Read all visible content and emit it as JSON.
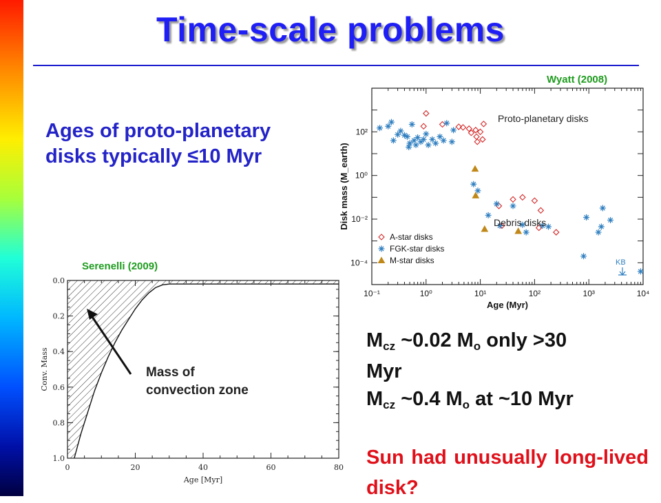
{
  "slide": {
    "title": "Time-scale problems",
    "intro_line1": "Ages of proto-planetary",
    "intro_line2": "disks typically ≤10 Myr",
    "cite_right": "Wyatt (2008)",
    "cite_left": "Serenelli (2009)",
    "stmt1": {
      "m": "M",
      "sub": "cz",
      "mid": " ~0.02 M",
      "sub2": "o",
      "end": " only >30",
      "line2": "Myr"
    },
    "stmt2": {
      "m": "M",
      "sub": "cz",
      "mid": " ~0.4 M",
      "sub2": "o",
      "end": " at ~10 Myr"
    },
    "question": "Sun had unusually long-lived disk?",
    "arrow_label_line1": "Mass of",
    "arrow_label_line2": "convection zone",
    "colors": {
      "title": "#1f1ff5",
      "citation": "#1e9c1e",
      "body_blue": "#2323c8",
      "question": "#e0101a"
    }
  },
  "chart_data": [
    {
      "type": "scatter",
      "xlabel": "Age (Myr)",
      "ylabel": "Disk mass (M_earth)",
      "xscale": "log",
      "yscale": "log",
      "xlim": [
        0.1,
        10000
      ],
      "ylim": [
        1e-05,
        10000
      ],
      "xticks": [
        "10⁻¹",
        "10⁰",
        "10¹",
        "10²",
        "10³",
        "10⁴"
      ],
      "yticks": [
        "10²",
        "10⁰",
        "10⁻²",
        "10⁻⁴"
      ],
      "annotations": [
        "Proto-planetary disks",
        "Debris disks",
        "KB"
      ],
      "legend_position": "bottom-left",
      "series": [
        {
          "name": "A-star disks",
          "marker": "diamond",
          "color": "#d42a2a",
          "points": [
            [
              1,
              700
            ],
            [
              0.9,
              180
            ],
            [
              2,
              220
            ],
            [
              4,
              170
            ],
            [
              4.8,
              160
            ],
            [
              6.2,
              140
            ],
            [
              8.2,
              120
            ],
            [
              8.5,
              60
            ],
            [
              10,
              100
            ],
            [
              11,
              45
            ],
            [
              11.5,
              230
            ],
            [
              8.8,
              35
            ],
            [
              25,
              0.005
            ],
            [
              40,
              0.08
            ],
            [
              60,
              0.1
            ],
            [
              100,
              0.07
            ],
            [
              22,
              0.04
            ],
            [
              130,
              0.025
            ],
            [
              120,
              0.004
            ],
            [
              250,
              0.0025
            ],
            [
              6.8,
              90
            ]
          ]
        },
        {
          "name": "FGK-star disks",
          "marker": "asterisk",
          "color": "#2f7fc0",
          "points": [
            [
              0.14,
              150
            ],
            [
              0.2,
              180
            ],
            [
              0.23,
              280
            ],
            [
              0.25,
              40
            ],
            [
              0.3,
              75
            ],
            [
              0.34,
              110
            ],
            [
              0.4,
              70
            ],
            [
              0.45,
              60
            ],
            [
              0.48,
              20
            ],
            [
              0.5,
              30
            ],
            [
              0.55,
              220
            ],
            [
              0.6,
              40
            ],
            [
              0.65,
              25
            ],
            [
              0.7,
              55
            ],
            [
              0.8,
              35
            ],
            [
              0.9,
              45
            ],
            [
              1,
              80
            ],
            [
              1.1,
              25
            ],
            [
              1.3,
              45
            ],
            [
              1.5,
              30
            ],
            [
              1.8,
              60
            ],
            [
              2.1,
              40
            ],
            [
              2.4,
              250
            ],
            [
              3,
              35
            ],
            [
              3.2,
              120
            ],
            [
              7.5,
              0.4
            ],
            [
              9,
              0.2
            ],
            [
              14,
              0.015
            ],
            [
              20,
              0.05
            ],
            [
              23,
              0.005
            ],
            [
              40,
              0.04
            ],
            [
              60,
              0.0055
            ],
            [
              70,
              0.0025
            ],
            [
              140,
              0.005
            ],
            [
              180,
              0.0045
            ],
            [
              800,
              0.0002
            ],
            [
              900,
              0.012
            ],
            [
              1500,
              0.0025
            ],
            [
              1700,
              0.0045
            ],
            [
              1800,
              0.032
            ],
            [
              2500,
              0.009
            ],
            [
              9000,
              4e-05
            ]
          ]
        },
        {
          "name": "M-star disks",
          "marker": "triangle",
          "color": "#c08818",
          "points": [
            [
              8,
              2
            ],
            [
              8.2,
              0.12
            ],
            [
              12,
              0.0035
            ],
            [
              50,
              0.0028
            ]
          ]
        }
      ]
    },
    {
      "type": "area",
      "xlabel": "Age [Myr]",
      "ylabel": "Conv. Mass",
      "xlim": [
        0,
        80
      ],
      "ylim": [
        1.0,
        0.0
      ],
      "y_inverted": true,
      "xticks": [
        0,
        20,
        40,
        60,
        80
      ],
      "yticks": [
        0.0,
        0.2,
        0.4,
        0.6,
        0.8,
        1.0
      ],
      "x": [
        2,
        4,
        6,
        8,
        10,
        12,
        14,
        16,
        18,
        20,
        22,
        24,
        26,
        28,
        30,
        32,
        34,
        36,
        40,
        50,
        60,
        70,
        80
      ],
      "y": [
        1.0,
        0.86,
        0.74,
        0.62,
        0.52,
        0.43,
        0.35,
        0.28,
        0.22,
        0.16,
        0.11,
        0.07,
        0.04,
        0.025,
        0.02,
        0.02,
        0.02,
        0.02,
        0.02,
        0.02,
        0.02,
        0.02,
        0.02
      ],
      "fill": "hatched"
    }
  ]
}
